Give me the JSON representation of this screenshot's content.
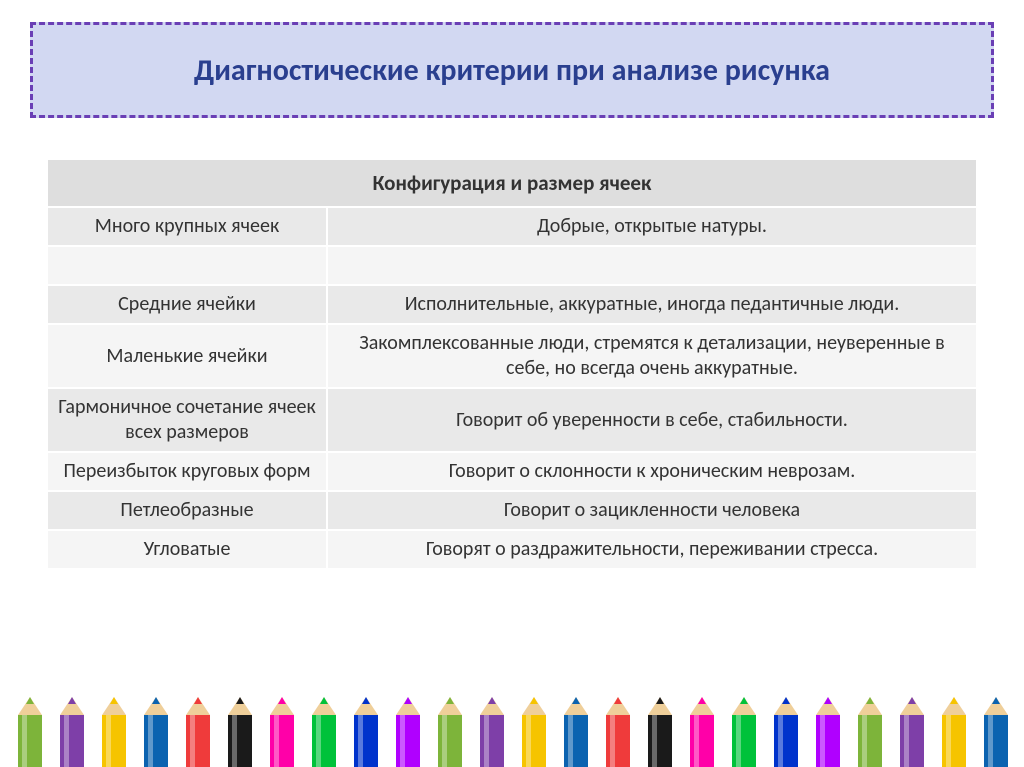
{
  "title": "Диагностические критерии при анализе рисунка",
  "title_color": "#2a3f8f",
  "title_fontsize": 30,
  "title_frame": {
    "border_color": "#6a3fb5",
    "background": "#d2d8f2",
    "border_style": "dashed",
    "border_width": 3
  },
  "table": {
    "header": "Конфигурация и размер ячеек",
    "header_bg": "#dedede",
    "row_bg_dark": "#e9e9e9",
    "row_bg_light": "#f5f5f5",
    "border_color": "#ffffff",
    "font_size": 20,
    "text_color": "#333333",
    "left_col_width": 258,
    "rows": [
      {
        "left": "Много крупных ячеек",
        "right": "Добрые, открытые натуры.",
        "shade": "dark"
      },
      {
        "left": "",
        "right": "",
        "shade": "light"
      },
      {
        "left": "Средние ячейки",
        "right": "Исполнительные, аккуратные, иногда педантичные люди.",
        "shade": "dark"
      },
      {
        "left": "Маленькие ячейки",
        "right": "Закомплексованные люди, стремятся к детализации, неуверенные в себе, но всегда очень аккуратные.",
        "shade": "light"
      },
      {
        "left": "Гармоничное сочетание ячеек всех размеров",
        "right": "Говорит об уверенности в себе, стабильности.",
        "shade": "dark"
      },
      {
        "left": "Переизбыток круговых форм",
        "right": "Говорит о склонности к хроническим неврозам.",
        "shade": "light"
      },
      {
        "left": "Петлеобразные",
        "right": "Говорит о зацикленности человека",
        "shade": "dark"
      },
      {
        "left": "Угловатые",
        "right": "Говорят о раздражительности, переживании стресса.",
        "shade": "light"
      }
    ]
  },
  "pencils": {
    "wood_color": "#efcf9a",
    "colors": [
      "#7db43a",
      "#7e3fa8",
      "#f6c400",
      "#0b63b0",
      "#ef3b3b",
      "#1a1a1a",
      "#ff00a8",
      "#00c23a",
      "#0033cc",
      "#b000ff",
      "#7db43a",
      "#7e3fa8",
      "#f6c400",
      "#0b63b0",
      "#ef3b3b",
      "#1a1a1a",
      "#ff00a8",
      "#00c23a",
      "#0033cc",
      "#b000ff",
      "#7db43a",
      "#7e3fa8",
      "#f6c400",
      "#0b63b0"
    ]
  }
}
